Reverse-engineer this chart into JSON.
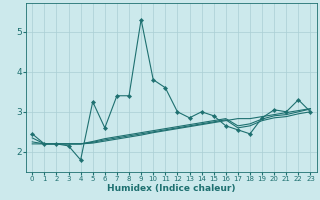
{
  "xlabel": "Humidex (Indice chaleur)",
  "bg_color": "#cce9ec",
  "grid_color": "#aacfd4",
  "line_color": "#1e7070",
  "xlim": [
    -0.5,
    23.5
  ],
  "ylim": [
    1.5,
    5.7
  ],
  "yticks": [
    2,
    3,
    4,
    5
  ],
  "xticks": [
    0,
    1,
    2,
    3,
    4,
    5,
    6,
    7,
    8,
    9,
    10,
    11,
    12,
    13,
    14,
    15,
    16,
    17,
    18,
    19,
    20,
    21,
    22,
    23
  ],
  "main_x": [
    0,
    1,
    2,
    3,
    4,
    5,
    6,
    7,
    8,
    9,
    10,
    11,
    12,
    13,
    14,
    15,
    16,
    17,
    18,
    19,
    20,
    21,
    22,
    23
  ],
  "main_y": [
    2.45,
    2.2,
    2.2,
    2.15,
    1.8,
    3.25,
    2.6,
    3.4,
    3.4,
    5.3,
    3.8,
    3.6,
    3.0,
    2.85,
    3.0,
    2.9,
    2.65,
    2.55,
    2.45,
    2.85,
    3.05,
    3.0,
    3.3,
    3.0
  ],
  "line2_x": [
    0,
    1,
    2,
    3,
    4,
    5,
    6,
    7,
    8,
    9,
    10,
    11,
    12,
    13,
    14,
    15,
    16,
    17,
    18,
    19,
    20,
    21,
    22,
    23
  ],
  "line2_y": [
    2.2,
    2.2,
    2.2,
    2.2,
    2.2,
    2.22,
    2.27,
    2.32,
    2.37,
    2.42,
    2.48,
    2.53,
    2.58,
    2.63,
    2.68,
    2.73,
    2.78,
    2.83,
    2.83,
    2.88,
    2.93,
    2.98,
    3.03,
    3.08
  ],
  "line3_x": [
    0,
    1,
    2,
    3,
    4,
    5,
    6,
    7,
    8,
    9,
    10,
    11,
    12,
    13,
    14,
    15,
    16,
    17,
    18,
    19,
    20,
    21,
    22,
    23
  ],
  "line3_y": [
    2.25,
    2.2,
    2.2,
    2.2,
    2.2,
    2.24,
    2.3,
    2.35,
    2.4,
    2.45,
    2.5,
    2.55,
    2.6,
    2.65,
    2.7,
    2.75,
    2.8,
    2.6,
    2.65,
    2.78,
    2.85,
    2.88,
    2.95,
    3.0
  ],
  "line4_x": [
    0,
    1,
    2,
    3,
    4,
    5,
    6,
    7,
    8,
    9,
    10,
    11,
    12,
    13,
    14,
    15,
    16,
    17,
    18,
    19,
    20,
    21,
    22,
    23
  ],
  "line4_y": [
    2.35,
    2.2,
    2.2,
    2.2,
    2.2,
    2.26,
    2.33,
    2.38,
    2.43,
    2.48,
    2.53,
    2.58,
    2.63,
    2.68,
    2.73,
    2.78,
    2.83,
    2.65,
    2.7,
    2.82,
    2.9,
    2.93,
    3.0,
    3.07
  ]
}
